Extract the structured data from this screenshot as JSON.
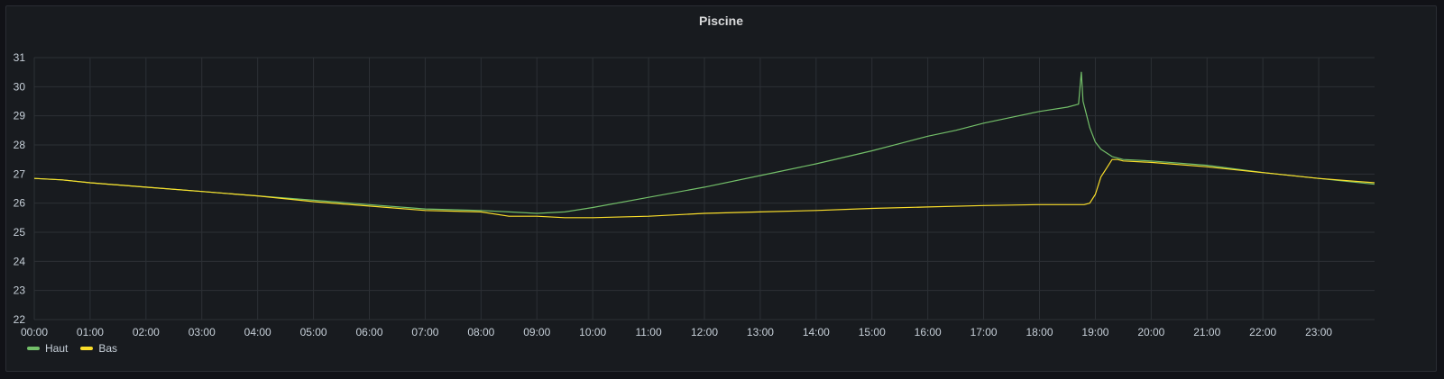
{
  "panel": {
    "title": "Piscine"
  },
  "chart_data": {
    "type": "line",
    "title": "Piscine",
    "xlabel": "",
    "ylabel": "",
    "x_ticks": [
      "00:00",
      "01:00",
      "02:00",
      "03:00",
      "04:00",
      "05:00",
      "06:00",
      "07:00",
      "08:00",
      "09:00",
      "10:00",
      "11:00",
      "12:00",
      "13:00",
      "14:00",
      "15:00",
      "16:00",
      "17:00",
      "18:00",
      "19:00",
      "20:00",
      "21:00",
      "22:00",
      "23:00"
    ],
    "xlim": [
      0,
      24
    ],
    "ylim": [
      22,
      31
    ],
    "y_ticks": [
      22,
      23,
      24,
      25,
      26,
      27,
      28,
      29,
      30,
      31
    ],
    "grid": true,
    "legend_position": "bottom-left",
    "series": [
      {
        "name": "Haut",
        "color": "#73bf69",
        "x": [
          0,
          0.5,
          1,
          2,
          3,
          4,
          5,
          6,
          7,
          8,
          8.5,
          9,
          9.5,
          10,
          11,
          12,
          13,
          14,
          15,
          15.5,
          16,
          16.5,
          17,
          17.5,
          18,
          18.5,
          18.7,
          18.75,
          18.78,
          18.82,
          18.9,
          19.0,
          19.1,
          19.3,
          19.5,
          20,
          21,
          22,
          23,
          24
        ],
        "y": [
          26.85,
          26.8,
          26.7,
          26.55,
          26.4,
          26.25,
          26.1,
          25.95,
          25.8,
          25.75,
          25.7,
          25.65,
          25.7,
          25.85,
          26.2,
          26.55,
          26.95,
          27.35,
          27.8,
          28.05,
          28.3,
          28.5,
          28.75,
          28.95,
          29.15,
          29.3,
          29.4,
          30.5,
          29.5,
          29.2,
          28.6,
          28.1,
          27.85,
          27.6,
          27.5,
          27.45,
          27.3,
          27.05,
          26.85,
          26.65
        ]
      },
      {
        "name": "Bas",
        "color": "#fade2a",
        "x": [
          0,
          0.5,
          1,
          2,
          3,
          4,
          5,
          6,
          7,
          8,
          8.5,
          9,
          9.5,
          10,
          11,
          12,
          13,
          14,
          15,
          16,
          17,
          18,
          18.8,
          18.9,
          19.0,
          19.1,
          19.2,
          19.3,
          19.4,
          19.5,
          20,
          21,
          22,
          23,
          24
        ],
        "y": [
          26.85,
          26.8,
          26.7,
          26.55,
          26.4,
          26.25,
          26.05,
          25.9,
          25.75,
          25.7,
          25.55,
          25.55,
          25.5,
          25.5,
          25.55,
          25.65,
          25.7,
          25.75,
          25.82,
          25.87,
          25.92,
          25.95,
          25.95,
          26.0,
          26.3,
          26.9,
          27.2,
          27.5,
          27.5,
          27.45,
          27.4,
          27.25,
          27.05,
          26.85,
          26.7
        ]
      }
    ]
  }
}
